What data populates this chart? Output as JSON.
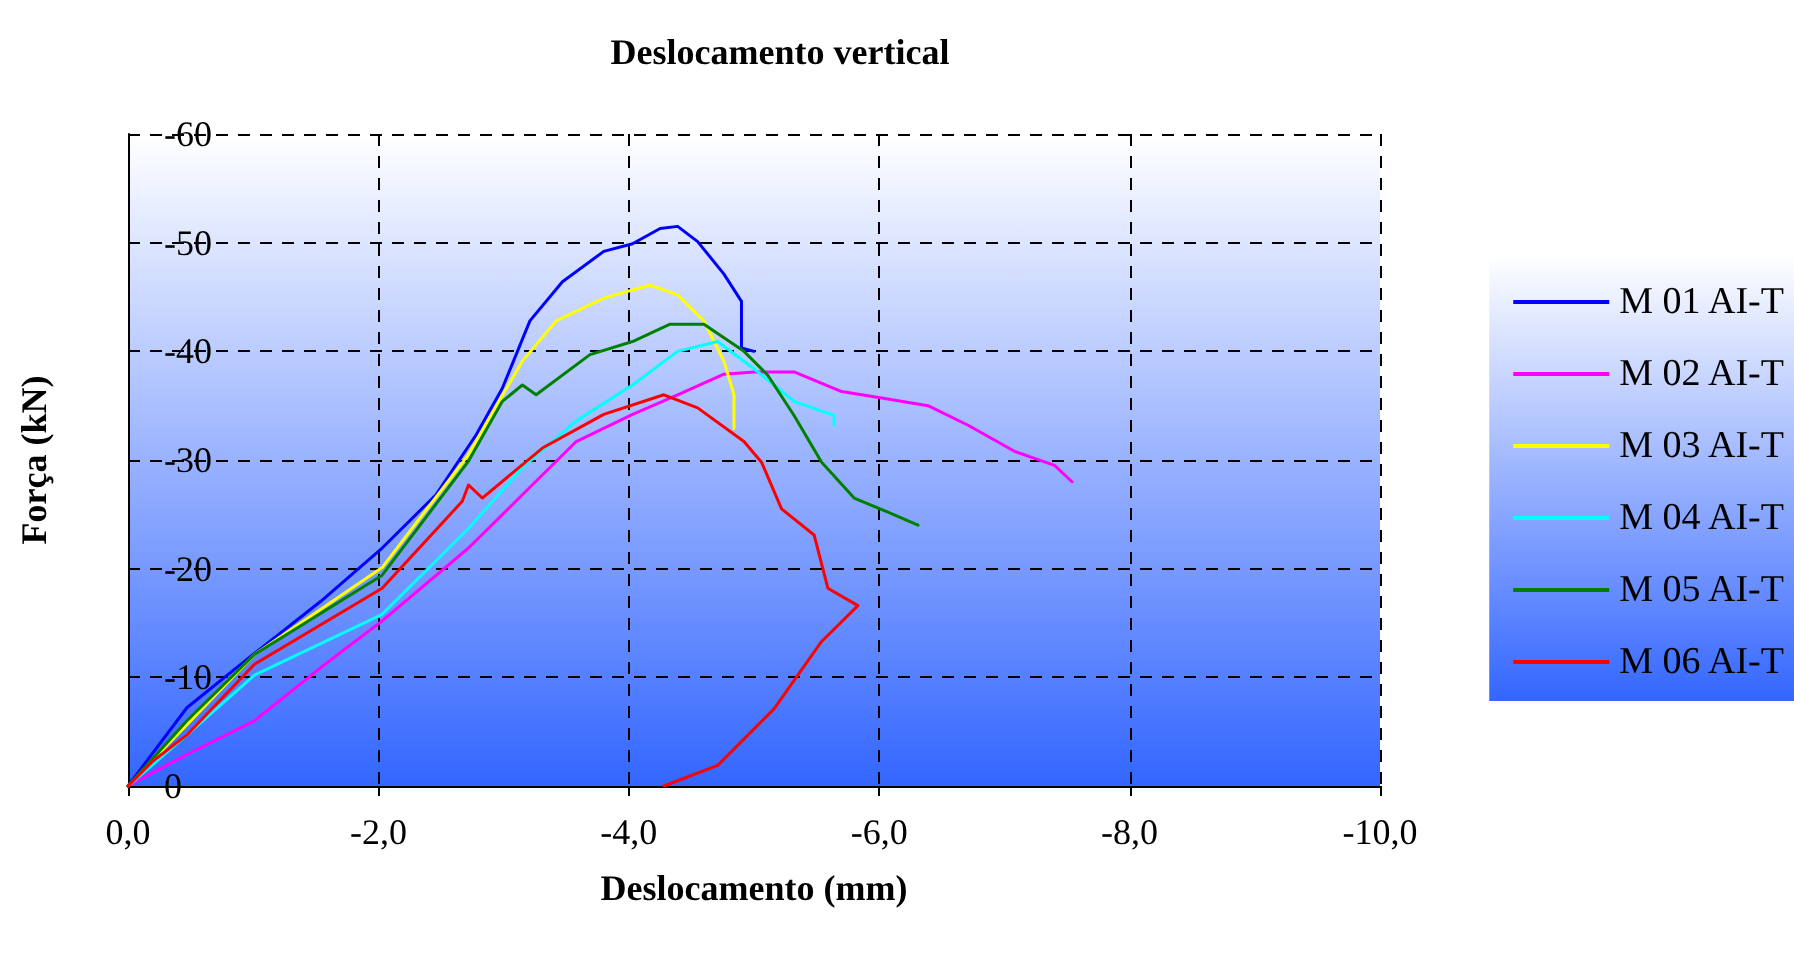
{
  "chart_data": {
    "type": "line",
    "title": "Deslocamento vertical",
    "xlabel": "Deslocamento (mm)",
    "ylabel": "Força (kN)",
    "xlim": [
      0,
      -10
    ],
    "xticks": [
      {
        "value": 0,
        "label": "0,0"
      },
      {
        "value": -2,
        "label": "-2,0"
      },
      {
        "value": -4,
        "label": "-4,0"
      },
      {
        "value": -6,
        "label": "-6,0"
      },
      {
        "value": -8,
        "label": "-8,0"
      },
      {
        "value": -10,
        "label": "-10,0"
      }
    ],
    "ylim": [
      0,
      -60
    ],
    "yticks": [
      0,
      -10,
      -20,
      -30,
      -40,
      -50,
      -60
    ],
    "grid": true,
    "legend": "right",
    "marker": "none",
    "line_style": "solid",
    "series": [
      {
        "name": "M 01 AI-T",
        "color": "#0000ff",
        "x": [
          0,
          -0.47,
          -0.9,
          -1.54,
          -2.03,
          -2.46,
          -2.78,
          -2.99,
          -3.21,
          -3.47,
          -3.8,
          -4.03,
          -4.25,
          -4.39,
          -4.55,
          -4.76,
          -4.9,
          -4.9,
          -5.0
        ],
        "values": [
          0,
          -7.2,
          -11.2,
          -17,
          -21.9,
          -26.8,
          -32.3,
          -36.6,
          -42.8,
          -46.4,
          -49.2,
          -49.9,
          -51.3,
          -51.5,
          -50.1,
          -47.1,
          -44.6,
          -40.3,
          -40.0
        ]
      },
      {
        "name": "M 02 AI-T",
        "color": "#ff00ff",
        "x": [
          0,
          -0.47,
          -1.01,
          -1.54,
          -2.03,
          -2.72,
          -3.15,
          -3.58,
          -4.03,
          -4.39,
          -4.76,
          -5.0,
          -5.32,
          -5.7,
          -6.02,
          -6.39,
          -6.71,
          -7.08,
          -7.4,
          -7.54
        ],
        "values": [
          0,
          -2.9,
          -6,
          -10.9,
          -15.2,
          -21.9,
          -26.8,
          -31.7,
          -34.2,
          -36,
          -37.9,
          -38.1,
          -38.1,
          -36.3,
          -35.7,
          -35.0,
          -33.2,
          -30.8,
          -29.5,
          -28.0
        ]
      },
      {
        "name": "M 03 AI-T",
        "color": "#ffff00",
        "x": [
          0,
          -1.01,
          -2.03,
          -2.72,
          -3.15,
          -3.42,
          -3.8,
          -4.17,
          -4.39,
          -4.6,
          -4.76,
          -4.84,
          -4.84
        ],
        "values": [
          0,
          -12.1,
          -20.1,
          -30.5,
          -39.1,
          -42.8,
          -44.9,
          -46.1,
          -45.2,
          -42.8,
          -39.1,
          -36,
          -32.9
        ]
      },
      {
        "name": "M 04 AI-T",
        "color": "#00ffff",
        "x": [
          0,
          -0.47,
          -1.01,
          -2.03,
          -2.72,
          -3.15,
          -3.58,
          -4.03,
          -4.39,
          -4.71,
          -5.0,
          -5.32,
          -5.64,
          -5.64
        ],
        "values": [
          0,
          -4.7,
          -10.2,
          -15.8,
          -23.7,
          -29.3,
          -33.6,
          -36.9,
          -40,
          -40.9,
          -38.4,
          -35.4,
          -34.1,
          -33.2
        ]
      },
      {
        "name": "M 05 AI-T",
        "color": "#008000",
        "x": [
          0,
          -0.47,
          -1.01,
          -2.03,
          -2.72,
          -2.99,
          -3.15,
          -3.26,
          -3.69,
          -4.03,
          -4.33,
          -4.6,
          -4.92,
          -5.11,
          -5.32,
          -5.54,
          -5.8,
          -6.07,
          -6.31
        ],
        "values": [
          0,
          -6,
          -12.1,
          -19.4,
          -29.9,
          -35.4,
          -36.9,
          -36,
          -39.7,
          -40.9,
          -42.5,
          -42.5,
          -40,
          -37.8,
          -34.1,
          -29.8,
          -26.5,
          -25.2,
          -24.0
        ]
      },
      {
        "name": "M 06 AI-T",
        "color": "#ff0000",
        "x": [
          0,
          -0.2,
          -0.47,
          -1.01,
          -2.03,
          -2.67,
          -2.72,
          -2.83,
          -3.31,
          -3.8,
          -4.28,
          -4.55,
          -4.92,
          -5.06,
          -5.22,
          -5.48,
          -5.59,
          -5.83,
          -5.54,
          -5.16,
          -4.71,
          -4.28
        ],
        "values": [
          0,
          -2.3,
          -4.7,
          -11.2,
          -18.2,
          -26.2,
          -27.7,
          -26.5,
          -31.1,
          -34.2,
          -36,
          -34.8,
          -31.7,
          -29.8,
          -25.5,
          -23.1,
          -18.2,
          -16.6,
          -13.3,
          -7.1,
          -1.9,
          0
        ]
      }
    ]
  }
}
